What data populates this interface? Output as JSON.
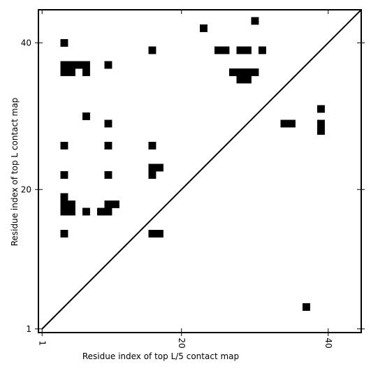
{
  "chart_data": {
    "type": "heatmap",
    "title": "",
    "xlabel": "Residue index of top L/5 contact map",
    "ylabel": "Residue index of top L contact map",
    "xlim": [
      0.5,
      44.5
    ],
    "ylim": [
      0.5,
      44.5
    ],
    "x_ticks": [
      1,
      20,
      40
    ],
    "y_ticks": [
      1,
      20,
      40
    ],
    "x_tick_labels": [
      "1",
      "20",
      "40"
    ],
    "y_tick_labels": [
      "1",
      "20",
      "40"
    ],
    "diagonal": true,
    "cell_color": "#000000",
    "cells": [
      [
        4,
        40
      ],
      [
        4,
        36
      ],
      [
        4,
        37
      ],
      [
        5,
        36
      ],
      [
        5,
        37
      ],
      [
        6,
        37
      ],
      [
        7,
        37
      ],
      [
        7,
        36
      ],
      [
        10,
        37
      ],
      [
        7,
        30
      ],
      [
        10,
        29
      ],
      [
        4,
        26
      ],
      [
        10,
        26
      ],
      [
        16,
        26
      ],
      [
        4,
        22
      ],
      [
        10,
        22
      ],
      [
        16,
        23
      ],
      [
        17,
        23
      ],
      [
        16,
        22
      ],
      [
        4,
        19
      ],
      [
        4,
        18
      ],
      [
        5,
        18
      ],
      [
        4,
        17
      ],
      [
        5,
        17
      ],
      [
        10,
        18
      ],
      [
        11,
        18
      ],
      [
        9,
        17
      ],
      [
        10,
        17
      ],
      [
        7,
        17
      ],
      [
        4,
        14
      ],
      [
        16,
        14
      ],
      [
        17,
        14
      ],
      [
        16,
        39
      ],
      [
        23,
        42
      ],
      [
        25,
        39
      ],
      [
        26,
        39
      ],
      [
        27,
        36
      ],
      [
        28,
        39
      ],
      [
        29,
        39
      ],
      [
        28,
        36
      ],
      [
        29,
        36
      ],
      [
        30,
        36
      ],
      [
        28,
        35
      ],
      [
        29,
        35
      ],
      [
        31,
        39
      ],
      [
        30,
        43
      ],
      [
        34,
        29
      ],
      [
        35,
        29
      ],
      [
        39,
        31
      ],
      [
        39,
        29
      ],
      [
        39,
        28
      ],
      [
        37,
        4
      ]
    ]
  }
}
